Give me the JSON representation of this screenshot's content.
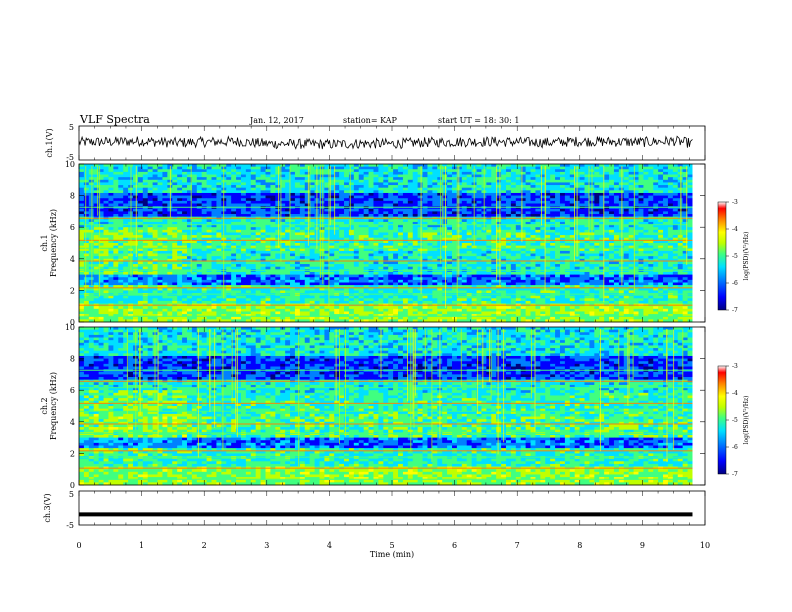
{
  "header": {
    "title": "VLF Spectra",
    "date": "Jan. 12, 2017",
    "station": "station= KAP",
    "start": "start UT =  18: 30: 1"
  },
  "colors": {
    "palette": [
      "#000080",
      "#0000ff",
      "#0080ff",
      "#00e0ff",
      "#40ff80",
      "#c0ff00",
      "#ffff00",
      "#ff8000",
      "#ff0000",
      "#ffffff"
    ],
    "trace": "#000000"
  },
  "chart_data": [
    {
      "type": "line",
      "name": "ch1-waveform",
      "ylabel": "ch.1(V)",
      "ylim": [
        -5,
        5
      ],
      "yticks": [
        "5",
        "-5"
      ],
      "xlim": [
        0,
        10
      ],
      "description_of_values": "noisy signal around 0 V, amplitude about ±2.5 V",
      "x": [
        0,
        0.5,
        1,
        1.5,
        2,
        2.5,
        3,
        3.5,
        4,
        4.5,
        5,
        5.5,
        6,
        6.5,
        7,
        7.5,
        8,
        8.5,
        9,
        9.5,
        9.8
      ],
      "y": [
        0.5,
        0.8,
        1.2,
        0.2,
        0.6,
        1.0,
        -0.4,
        -0.6,
        -0.8,
        -0.3,
        -0.5,
        0.4,
        0.7,
        0.9,
        0.6,
        0.3,
        1.1,
        0.8,
        0.5,
        1.3,
        -0.2
      ]
    },
    {
      "type": "heatmap",
      "name": "ch1-spectrogram",
      "ylabel": "ch.1 Frequency (kHz)",
      "ylim": [
        0,
        10
      ],
      "yticks": [
        "0",
        "2",
        "4",
        "6",
        "8",
        "10"
      ],
      "xlim": [
        0,
        10
      ],
      "colorbar": {
        "label": "log(PSD)(V²/Hz)",
        "range": [
          -7,
          -3
        ],
        "ticks": [
          "-3",
          "-4",
          "-5",
          "-6",
          "-7"
        ]
      }
    },
    {
      "type": "heatmap",
      "name": "ch2-spectrogram",
      "ylabel": "ch.2 Frequency (kHz)",
      "ylim": [
        0,
        10
      ],
      "yticks": [
        "0",
        "2",
        "4",
        "6",
        "8",
        "10"
      ],
      "xlim": [
        0,
        10
      ],
      "colorbar": {
        "label": "log(PSD)(V²/Hz)",
        "range": [
          -7,
          -3
        ],
        "ticks": [
          "-3",
          "-4",
          "-5",
          "-6",
          "-7"
        ]
      }
    },
    {
      "type": "line",
      "name": "ch3-waveform",
      "ylabel": "ch.3(V)",
      "ylim": [
        -5,
        5
      ],
      "yticks": [
        "5",
        "-5"
      ],
      "xlim": [
        0,
        10
      ],
      "x": [
        0,
        9.8
      ],
      "y": [
        -2,
        -2
      ]
    }
  ],
  "xaxis": {
    "label": "Time (min)",
    "ticks": [
      "0",
      "1",
      "2",
      "3",
      "4",
      "5",
      "6",
      "7",
      "8",
      "9",
      "10"
    ]
  }
}
